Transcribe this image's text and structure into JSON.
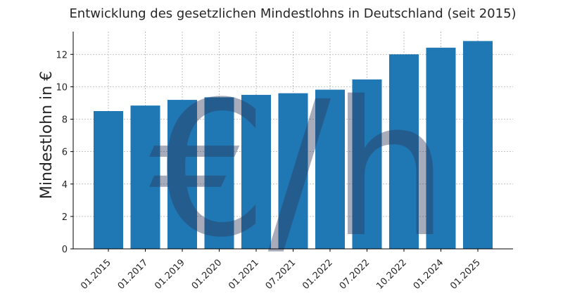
{
  "chart_data": {
    "type": "bar",
    "title": "Entwicklung des gesetzlichen Mindestlohns in Deutschland (seit 2015)",
    "xlabel": "",
    "ylabel": "Mindestlohn in €",
    "categories": [
      "01.2015",
      "01.2017",
      "01.2019",
      "01.2020",
      "01.2021",
      "07.2021",
      "01.2022",
      "07.2022",
      "10.2022",
      "01.2024",
      "01.2025"
    ],
    "values": [
      8.5,
      8.84,
      9.19,
      9.35,
      9.5,
      9.6,
      9.82,
      10.45,
      12.0,
      12.41,
      12.82
    ],
    "ylim": [
      0,
      13.4
    ],
    "yticks": [
      0,
      2,
      4,
      6,
      8,
      10,
      12
    ],
    "grid": true,
    "bar_color": "#1f77b4",
    "watermark": "€/h"
  }
}
